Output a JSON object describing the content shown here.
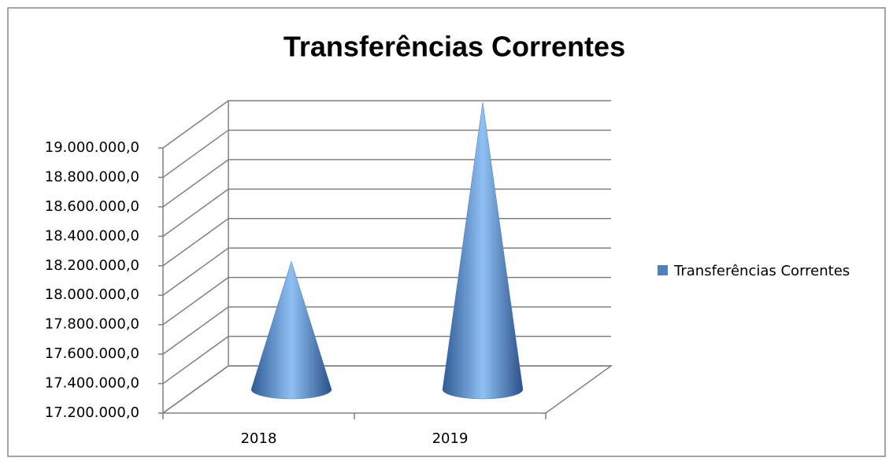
{
  "chart_data": {
    "type": "cone",
    "title": "Transferências Correntes",
    "categories": [
      "2018",
      "2019"
    ],
    "series": [
      {
        "name": "Transferências Correntes",
        "color": "#4f81bd",
        "values": [
          17910000,
          18990000
        ]
      }
    ],
    "ylim": [
      17200000,
      19000000
    ],
    "yticks": [
      {
        "value": 17200000,
        "label": "17.200.000,0"
      },
      {
        "value": 17400000,
        "label": "17.400.000,0"
      },
      {
        "value": 17600000,
        "label": "17.600.000,0"
      },
      {
        "value": 17800000,
        "label": "17.800.000,0"
      },
      {
        "value": 18000000,
        "label": "18.000.000,0"
      },
      {
        "value": 18200000,
        "label": "18.200.000,0"
      },
      {
        "value": 18400000,
        "label": "18.400.000,0"
      },
      {
        "value": 18600000,
        "label": "18.600.000,0"
      },
      {
        "value": 18800000,
        "label": "18.800.000,0"
      },
      {
        "value": 19000000,
        "label": "19.000.000,0"
      }
    ],
    "grid": true,
    "legend": "right"
  }
}
